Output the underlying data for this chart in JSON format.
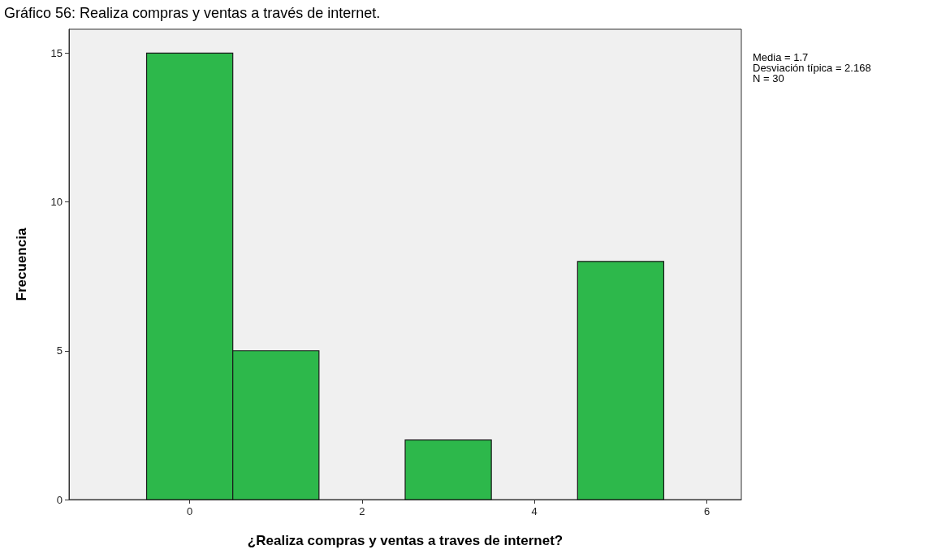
{
  "chart_data": {
    "type": "histogram",
    "title": "Gráfico 56: Realiza compras y ventas a través de internet.",
    "xlabel": "¿Realiza compras y ventas a traves de internet?",
    "ylabel": "Frecuencia",
    "bins": [
      -0.5,
      0.5,
      1.5,
      2.5,
      3.5,
      4.5,
      5.5
    ],
    "values": [
      15,
      5,
      0,
      2,
      0,
      8
    ],
    "color": "#2db84b",
    "xlim": [
      -1.4,
      6.4
    ],
    "xticks": [
      0,
      2,
      4,
      6
    ],
    "ylim": [
      0,
      15.8
    ],
    "yticks": [
      0,
      5,
      10,
      15
    ],
    "annotations": [
      "Media = 1.7",
      "Desviación típica = 2.168",
      "N = 30"
    ]
  }
}
